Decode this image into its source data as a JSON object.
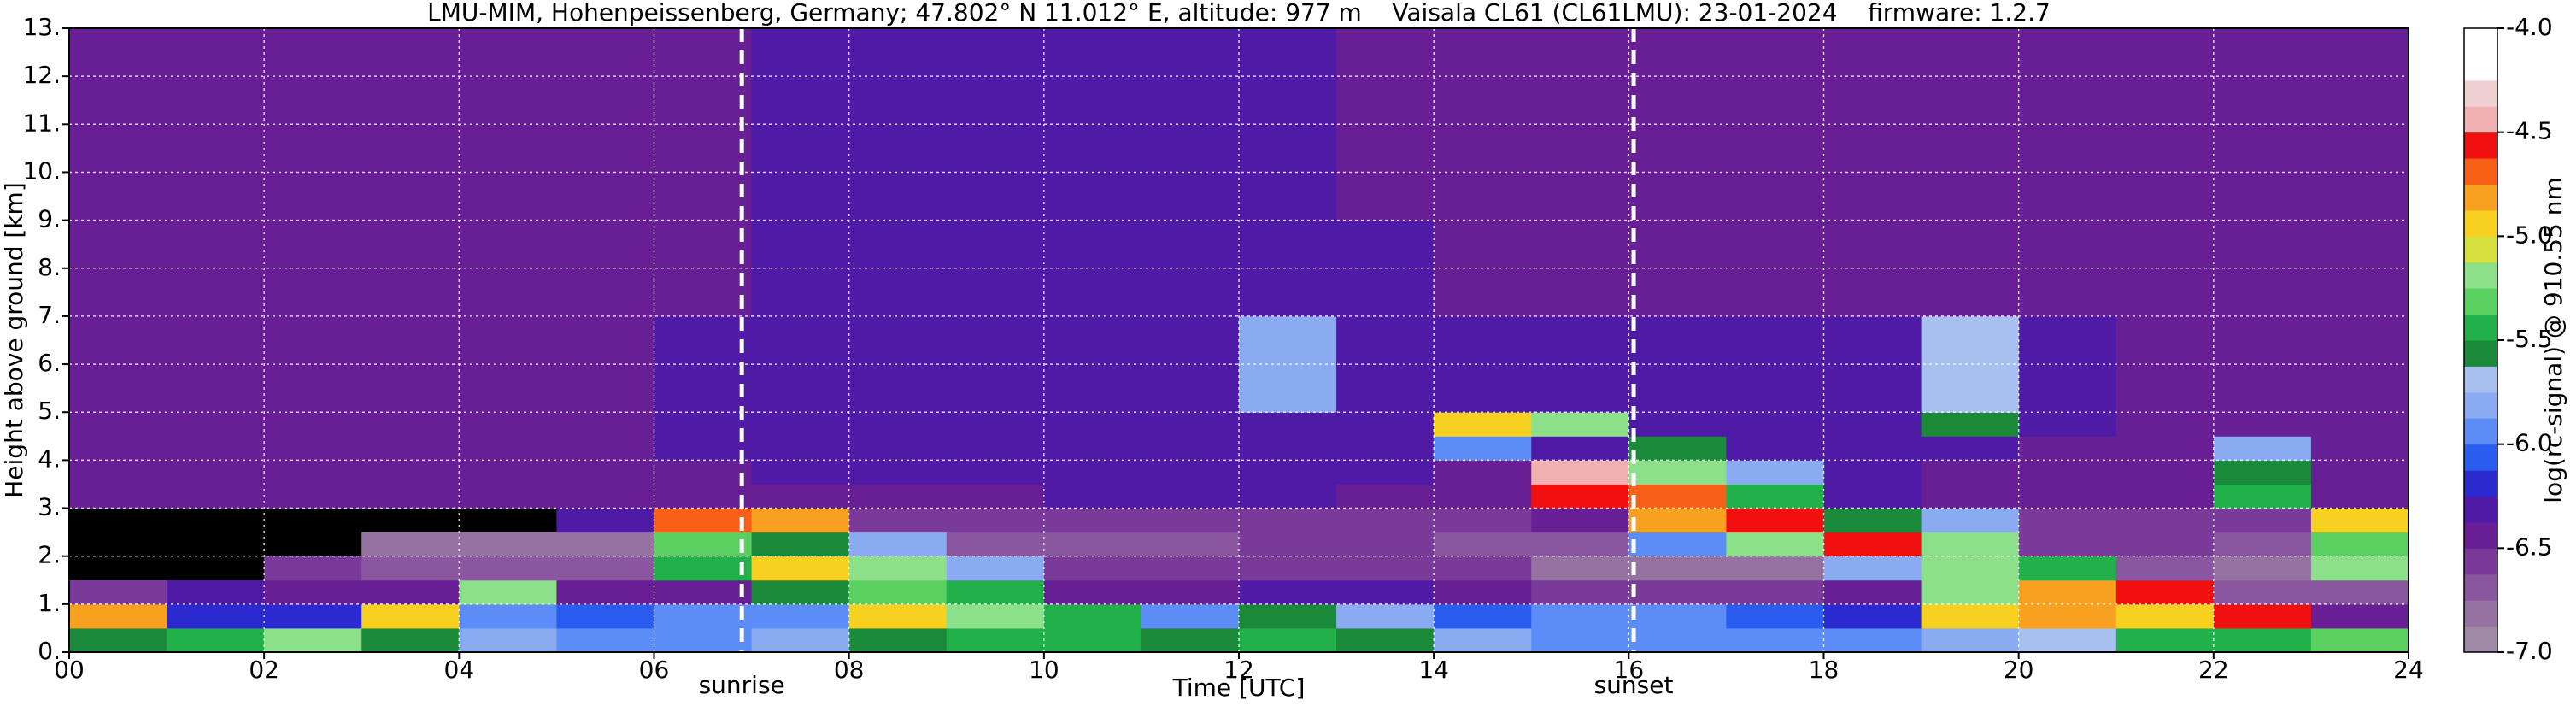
{
  "chart_data": {
    "type": "heatmap",
    "title": "LMU-MIM, Hohenpeissenberg, Germany; 47.802° N 11.012° E, altitude: 977 m    Vaisala CL61 (CL61LMU): 23-01-2024    firmware: 1.2.7",
    "x_label": "Time [UTC]",
    "y_label": "Height above ground [km]",
    "colorbar_label": "log(rc-signal) @ 910.55 nm",
    "x_edges": [
      0,
      1,
      2,
      3,
      4,
      5,
      6,
      7,
      8,
      9,
      10,
      11,
      12,
      13,
      14,
      15,
      16,
      17,
      18,
      19,
      20,
      21,
      22,
      23,
      24
    ],
    "y_edges": [
      0,
      0.5,
      1,
      1.5,
      2,
      2.5,
      3,
      3.5,
      4,
      4.5,
      5,
      7,
      9,
      11,
      13
    ],
    "z": [
      [
        -5.6,
        -5.4,
        -5.2,
        -5.6,
        -5.8,
        -5.9,
        -6.0,
        -5.8,
        -5.6,
        -5.5,
        -5.5,
        -5.6,
        -5.5,
        -5.6,
        -5.8,
        -6.0,
        -5.9,
        -5.9,
        -5.9,
        -5.8,
        -5.7,
        -5.5,
        -5.4,
        -5.3
      ],
      [
        -4.8,
        -6.2,
        -6.2,
        -5.0,
        -6.0,
        -6.1,
        -6.0,
        -5.9,
        -4.9,
        -5.2,
        -5.4,
        -6.0,
        -5.6,
        -5.8,
        -6.1,
        -6.0,
        -6.0,
        -6.1,
        -6.2,
        -5.0,
        -4.8,
        -5.0,
        -4.6,
        -6.5
      ],
      [
        -6.6,
        -6.3,
        -6.4,
        -6.5,
        -5.2,
        -6.4,
        -6.5,
        -5.6,
        -5.3,
        -5.5,
        -6.4,
        -6.4,
        -6.3,
        -6.3,
        -6.5,
        -6.6,
        -6.6,
        -6.6,
        -6.5,
        -5.2,
        -4.8,
        -4.6,
        -6.7,
        -6.7
      ],
      [
        null,
        null,
        -6.6,
        -6.7,
        -6.7,
        -6.7,
        -5.5,
        -5.0,
        -5.2,
        -5.8,
        -6.6,
        -6.6,
        -6.6,
        -6.6,
        -6.6,
        -6.8,
        -6.8,
        -6.8,
        -5.8,
        -5.2,
        -5.5,
        -6.7,
        -6.8,
        -5.2
      ],
      [
        null,
        null,
        null,
        -6.8,
        -6.8,
        -6.8,
        -5.3,
        -5.6,
        -5.8,
        -6.7,
        -6.7,
        -6.7,
        -6.6,
        -6.6,
        -6.7,
        -6.7,
        -6.0,
        -5.2,
        -4.6,
        -5.2,
        -6.6,
        -6.6,
        -6.7,
        -5.3
      ],
      [
        null,
        null,
        null,
        null,
        null,
        -6.3,
        -4.7,
        -4.8,
        -6.6,
        -6.6,
        -6.6,
        -6.6,
        -6.6,
        -6.6,
        -6.6,
        -6.5,
        -4.8,
        -4.6,
        -5.6,
        -5.8,
        -6.6,
        -6.6,
        -6.6,
        -5.0
      ],
      [
        -6.5,
        -6.5,
        -6.5,
        -6.5,
        -6.5,
        -6.5,
        -6.5,
        -6.5,
        -6.4,
        -6.4,
        -6.3,
        -6.3,
        -6.3,
        -6.4,
        -6.4,
        -4.6,
        -4.7,
        -5.4,
        -6.3,
        -6.4,
        -6.4,
        -6.4,
        -5.5,
        -6.5
      ],
      [
        -6.4,
        -6.4,
        -6.4,
        -6.4,
        -6.4,
        -6.4,
        -6.4,
        -6.3,
        -6.3,
        -6.3,
        -6.3,
        -6.3,
        -6.3,
        -6.3,
        -6.4,
        -4.5,
        -5.2,
        -5.8,
        -6.3,
        -6.4,
        -6.4,
        -6.4,
        -5.6,
        -6.4
      ],
      [
        -6.4,
        -6.4,
        -6.4,
        -6.4,
        -6.4,
        -6.4,
        -6.3,
        -6.3,
        -6.3,
        -6.3,
        -6.3,
        -6.3,
        -6.3,
        -6.3,
        -5.9,
        -6.3,
        -5.6,
        -6.3,
        -6.3,
        -6.3,
        -6.4,
        -6.4,
        -5.8,
        -6.4
      ],
      [
        -6.4,
        -6.4,
        -6.4,
        -6.4,
        -6.4,
        -6.4,
        -6.3,
        -6.3,
        -6.3,
        -6.3,
        -6.3,
        -6.3,
        -6.3,
        -6.3,
        -5.0,
        -5.2,
        -6.3,
        -6.3,
        -6.3,
        -5.6,
        -6.3,
        -6.4,
        -6.4,
        -6.4
      ],
      [
        -6.4,
        -6.4,
        -6.4,
        -6.4,
        -6.4,
        -6.4,
        -6.3,
        -6.3,
        -6.3,
        -6.3,
        -6.3,
        -6.3,
        -5.8,
        -6.3,
        -6.3,
        -6.3,
        -6.3,
        -6.3,
        -6.3,
        -5.7,
        -6.3,
        -6.4,
        -6.4,
        -6.4
      ],
      [
        -6.4,
        -6.4,
        -6.4,
        -6.4,
        -6.4,
        -6.4,
        -6.4,
        -6.3,
        -6.3,
        -6.3,
        -6.3,
        -6.3,
        -6.3,
        -6.3,
        -6.4,
        -6.4,
        -6.4,
        -6.4,
        -6.4,
        -6.4,
        -6.4,
        -6.4,
        -6.4,
        -6.4
      ],
      [
        -6.4,
        -6.4,
        -6.4,
        -6.4,
        -6.4,
        -6.4,
        -6.4,
        -6.3,
        -6.3,
        -6.3,
        -6.3,
        -6.3,
        -6.3,
        -6.4,
        -6.4,
        -6.4,
        -6.4,
        -6.4,
        -6.4,
        -6.4,
        -6.4,
        -6.4,
        -6.4,
        -6.4
      ],
      [
        -6.4,
        -6.4,
        -6.4,
        -6.4,
        -6.4,
        -6.4,
        -6.4,
        -6.3,
        -6.3,
        -6.3,
        -6.3,
        -6.3,
        -6.3,
        -6.4,
        -6.4,
        -6.4,
        -6.4,
        -6.4,
        -6.4,
        -6.4,
        -6.4,
        -6.4,
        -6.4,
        -6.4
      ]
    ],
    "clim": [
      -7,
      -4
    ],
    "colors": [
      "#9f8aa6",
      "#9672a3",
      "#8a56a0",
      "#7a3a9a",
      "#681f95",
      "#4e1aa6",
      "#2a2ad0",
      "#2a5cf0",
      "#5c8cf5",
      "#8aaaf2",
      "#a8c0f0",
      "#1a8a3a",
      "#22b04a",
      "#5ad060",
      "#8ce08a",
      "#d8e040",
      "#f8d020",
      "#f8a020",
      "#f86018",
      "#f01010",
      "#f0b0b0",
      "#f0d0d0",
      "#ffffff",
      "#ffffff"
    ],
    "xlim": [
      0,
      24
    ],
    "ylim": [
      0,
      13
    ],
    "xticks": [
      {
        "value": 0,
        "label": "00"
      },
      {
        "value": 2,
        "label": "02"
      },
      {
        "value": 4,
        "label": "04"
      },
      {
        "value": 6,
        "label": "06"
      },
      {
        "value": 8,
        "label": "08"
      },
      10,
      12,
      14,
      16,
      18,
      20,
      22,
      24
    ],
    "yticks": [
      {
        "value": 0,
        "label": "0."
      },
      {
        "value": 1,
        "label": "1."
      },
      {
        "value": 2,
        "label": "2."
      },
      {
        "value": 3,
        "label": "3."
      },
      {
        "value": 4,
        "label": "4."
      },
      {
        "value": 5,
        "label": "5."
      },
      {
        "value": 6,
        "label": "6."
      },
      {
        "value": 7,
        "label": "7."
      },
      {
        "value": 8,
        "label": "8."
      },
      {
        "value": 9,
        "label": "9."
      },
      {
        "value": 10,
        "label": "10."
      },
      {
        "value": 11,
        "label": "11."
      },
      {
        "value": 12,
        "label": "12."
      },
      {
        "value": 13,
        "label": "13."
      }
    ],
    "cticks": [
      {
        "value": -4,
        "label": "-4.0"
      },
      {
        "value": -4.5,
        "label": "-4.5"
      },
      {
        "value": -5,
        "label": "-5.0"
      },
      {
        "value": -5.5,
        "label": "-5.5"
      },
      {
        "value": -6,
        "label": "-6.0"
      },
      {
        "value": -6.5,
        "label": "-6.5"
      },
      {
        "value": -7,
        "label": "-7.0"
      }
    ],
    "grid": true,
    "annotations": [
      {
        "x": 6.9,
        "label": "sunrise"
      },
      {
        "x": 16.05,
        "label": "sunset"
      }
    ]
  }
}
